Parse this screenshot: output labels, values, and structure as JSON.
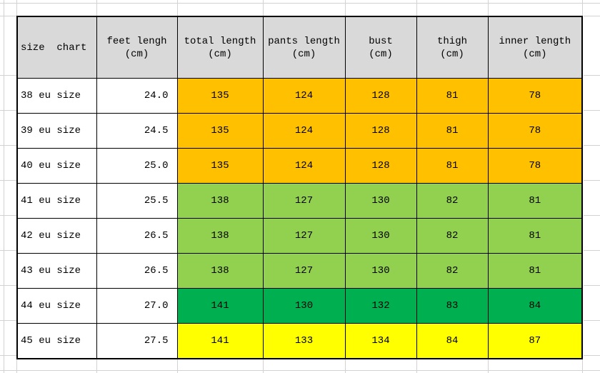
{
  "colors": {
    "header_bg": "#d9d9d9",
    "group_orange": "#ffc000",
    "group_light_green": "#92d050",
    "group_green": "#00b050",
    "group_yellow": "#ffff00",
    "gridline": "#d2d2d2",
    "table_border": "#000000"
  },
  "table": {
    "columns": [
      {
        "label": "size  chart",
        "unit": ""
      },
      {
        "label": "feet lengh",
        "unit": "(cm)"
      },
      {
        "label": "total length",
        "unit": "(cm)"
      },
      {
        "label": "pants length",
        "unit": "(cm)"
      },
      {
        "label": "bust",
        "unit": "(cm)"
      },
      {
        "label": "thigh",
        "unit": "(cm)"
      },
      {
        "label": "inner length",
        "unit": "(cm)"
      }
    ],
    "rows": [
      {
        "cells": [
          "38 eu size",
          "24.0",
          "135",
          "124",
          "128",
          "81",
          "78"
        ],
        "fill": "#ffc000"
      },
      {
        "cells": [
          "39 eu size",
          "24.5",
          "135",
          "124",
          "128",
          "81",
          "78"
        ],
        "fill": "#ffc000"
      },
      {
        "cells": [
          "40 eu size",
          "25.0",
          "135",
          "124",
          "128",
          "81",
          "78"
        ],
        "fill": "#ffc000"
      },
      {
        "cells": [
          "41 eu size",
          "25.5",
          "138",
          "127",
          "130",
          "82",
          "81"
        ],
        "fill": "#92d050"
      },
      {
        "cells": [
          "42 eu size",
          "26.5",
          "138",
          "127",
          "130",
          "82",
          "81"
        ],
        "fill": "#92d050"
      },
      {
        "cells": [
          "43 eu size",
          "26.5",
          "138",
          "127",
          "130",
          "82",
          "81"
        ],
        "fill": "#92d050"
      },
      {
        "cells": [
          "44 eu size",
          "27.0",
          "141",
          "130",
          "132",
          "83",
          "84"
        ],
        "fill": "#00b050"
      },
      {
        "cells": [
          "45 eu size",
          "27.5",
          "141",
          "133",
          "134",
          "84",
          "87"
        ],
        "fill": "#ffff00"
      }
    ]
  }
}
